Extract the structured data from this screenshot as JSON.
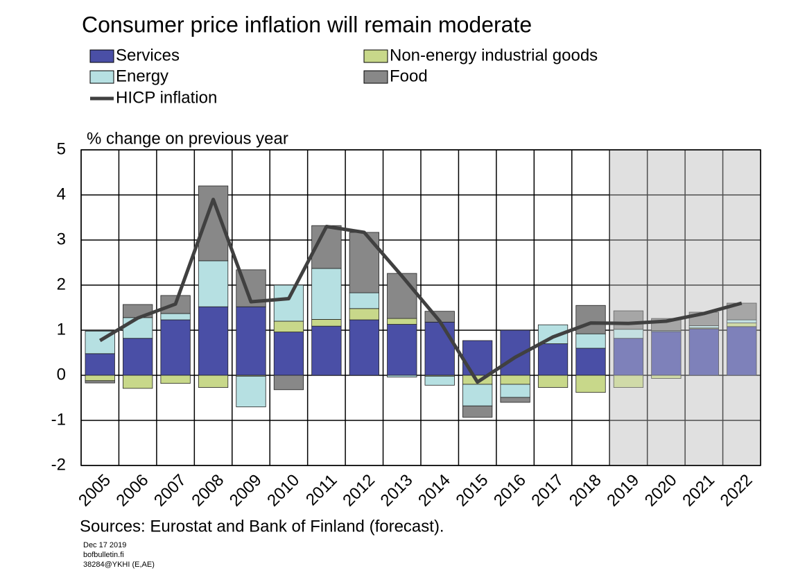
{
  "chart_data": {
    "type": "bar",
    "stacked": true,
    "title": "Consumer price inflation will remain moderate",
    "y_label": "% change on previous year",
    "source": "Sources: Eurostat and Bank of Finland (forecast).",
    "footnotes": [
      "Dec 17 2019",
      "bofbulletin.fi",
      "38284@YKHI (E,AE)"
    ],
    "categories": [
      "2005",
      "2006",
      "2007",
      "2008",
      "2009",
      "2010",
      "2011",
      "2012",
      "2013",
      "2014",
      "2015",
      "2016",
      "2017",
      "2018",
      "2019",
      "2020",
      "2021",
      "2022"
    ],
    "series": [
      {
        "name": "Services",
        "color": "#4a4fa6",
        "values": [
          0.48,
          0.82,
          1.23,
          1.52,
          1.52,
          0.96,
          1.09,
          1.23,
          1.13,
          1.18,
          0.77,
          1.0,
          0.7,
          0.6,
          0.82,
          0.97,
          1.03,
          1.08
        ]
      },
      {
        "name": "Non-energy industrial goods",
        "color": "#c8d88a",
        "values": [
          -0.12,
          -0.29,
          -0.18,
          -0.27,
          -0.02,
          0.24,
          0.15,
          0.25,
          0.13,
          -0.02,
          -0.2,
          -0.2,
          -0.27,
          -0.38,
          -0.27,
          -0.07,
          0.02,
          0.08
        ]
      },
      {
        "name": "Energy",
        "color": "#b6e0e2",
        "values": [
          0.5,
          0.46,
          0.14,
          1.02,
          -0.68,
          0.8,
          1.13,
          0.35,
          -0.04,
          -0.2,
          -0.48,
          -0.29,
          0.42,
          0.32,
          0.2,
          0.02,
          0.05,
          0.07
        ]
      },
      {
        "name": "Food",
        "color": "#888888",
        "values": [
          -0.05,
          0.29,
          0.4,
          1.66,
          0.82,
          -0.32,
          0.95,
          1.34,
          1.0,
          0.24,
          -0.25,
          -0.11,
          0.0,
          0.63,
          0.41,
          0.27,
          0.3,
          0.37
        ]
      },
      {
        "name": "HICP inflation",
        "type": "line",
        "color": "#404040",
        "values": [
          0.77,
          1.27,
          1.58,
          3.9,
          1.63,
          1.7,
          3.3,
          3.17,
          2.2,
          1.2,
          -0.15,
          0.4,
          0.85,
          1.16,
          1.15,
          1.2,
          1.37,
          1.6
        ]
      }
    ],
    "ylim": [
      -2,
      5
    ],
    "yticks": [
      -2,
      -1,
      0,
      1,
      2,
      3,
      4,
      5
    ],
    "grid": true,
    "forecast_shading": {
      "from": "2019",
      "color": "#e0e0e0"
    }
  }
}
